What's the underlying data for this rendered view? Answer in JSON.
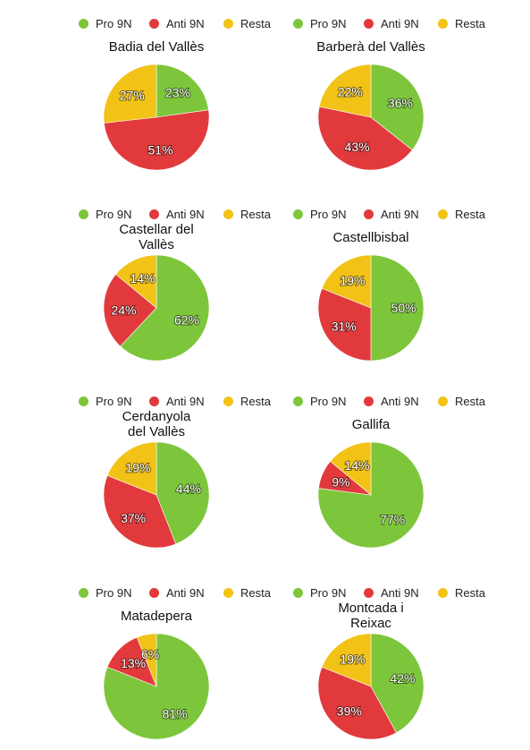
{
  "legend": {
    "items": [
      {
        "label": "Pro 9N",
        "color": "#7dc63b"
      },
      {
        "label": "Anti 9N",
        "color": "#e23a3c"
      },
      {
        "label": "Resta",
        "color": "#f2c316"
      }
    ]
  },
  "chart_data": [
    {
      "type": "pie",
      "title": "Badia del Vallès",
      "labels": [
        "Pro 9N",
        "Anti 9N",
        "Resta"
      ],
      "values": [
        23,
        51,
        27
      ],
      "value_labels": [
        "23%",
        "51%",
        "27%"
      ]
    },
    {
      "type": "pie",
      "title": "Barberà del Vallès",
      "labels": [
        "Pro 9N",
        "Anti 9N",
        "Resta"
      ],
      "values": [
        36,
        43,
        22
      ],
      "value_labels": [
        "36%",
        "43%",
        "22%"
      ]
    },
    {
      "type": "pie",
      "title": "Castellar del Vallès",
      "labels": [
        "Pro 9N",
        "Anti 9N",
        "Resta"
      ],
      "values": [
        62,
        24,
        14
      ],
      "value_labels": [
        "62%",
        "24%",
        "14%"
      ]
    },
    {
      "type": "pie",
      "title": "Castellbisbal",
      "labels": [
        "Pro 9N",
        "Anti 9N",
        "Resta"
      ],
      "values": [
        50,
        31,
        19
      ],
      "value_labels": [
        "50%",
        "31%",
        "19%"
      ]
    },
    {
      "type": "pie",
      "title": "Cerdanyola del Vallès",
      "labels": [
        "Pro 9N",
        "Anti 9N",
        "Resta"
      ],
      "values": [
        44,
        37,
        19
      ],
      "value_labels": [
        "44%",
        "37%",
        "19%"
      ]
    },
    {
      "type": "pie",
      "title": "Gallifa",
      "labels": [
        "Pro 9N",
        "Anti 9N",
        "Resta"
      ],
      "values": [
        77,
        9,
        14
      ],
      "value_labels": [
        "77%",
        "9%",
        "14%"
      ]
    },
    {
      "type": "pie",
      "title": "Matadepera",
      "labels": [
        "Pro 9N",
        "Anti 9N",
        "Resta"
      ],
      "values": [
        81,
        13,
        6
      ],
      "value_labels": [
        "81%",
        "13%",
        "6%"
      ]
    },
    {
      "type": "pie",
      "title": "Montcada i Reixac",
      "labels": [
        "Pro 9N",
        "Anti 9N",
        "Resta"
      ],
      "values": [
        42,
        39,
        19
      ],
      "value_labels": [
        "42%",
        "39%",
        "19%"
      ]
    }
  ]
}
